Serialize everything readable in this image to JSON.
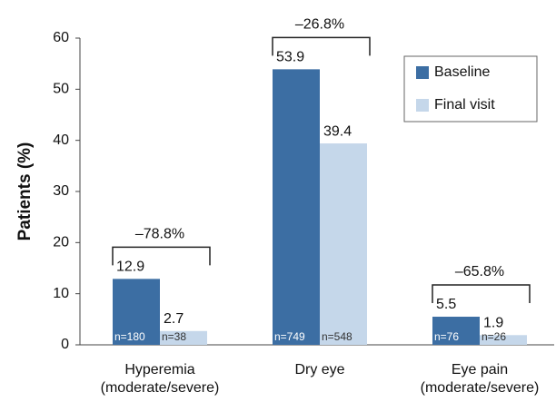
{
  "chart_data": {
    "type": "bar",
    "y_label": "Patients (%)",
    "categories": [
      "Hyperemia (moderate/severe)",
      "Dry eye",
      "Eye pain (moderate/severe)"
    ],
    "series": [
      {
        "name": "Baseline",
        "color": "#3c6ea3",
        "values": [
          12.9,
          53.9,
          5.5
        ],
        "n_labels": [
          "n=180",
          "n=749",
          "n=76"
        ]
      },
      {
        "name": "Final visit",
        "color": "#c5d7ea",
        "values": [
          2.7,
          39.4,
          1.9
        ],
        "n_labels": [
          "n=38",
          "n=548",
          "n=26"
        ]
      }
    ],
    "change_labels": [
      "–78.8%",
      "–26.8%",
      "–65.8%"
    ],
    "ylim": [
      0,
      60
    ],
    "yticks": [
      0,
      10,
      20,
      30,
      40,
      50,
      60
    ],
    "legend": "upper right"
  }
}
